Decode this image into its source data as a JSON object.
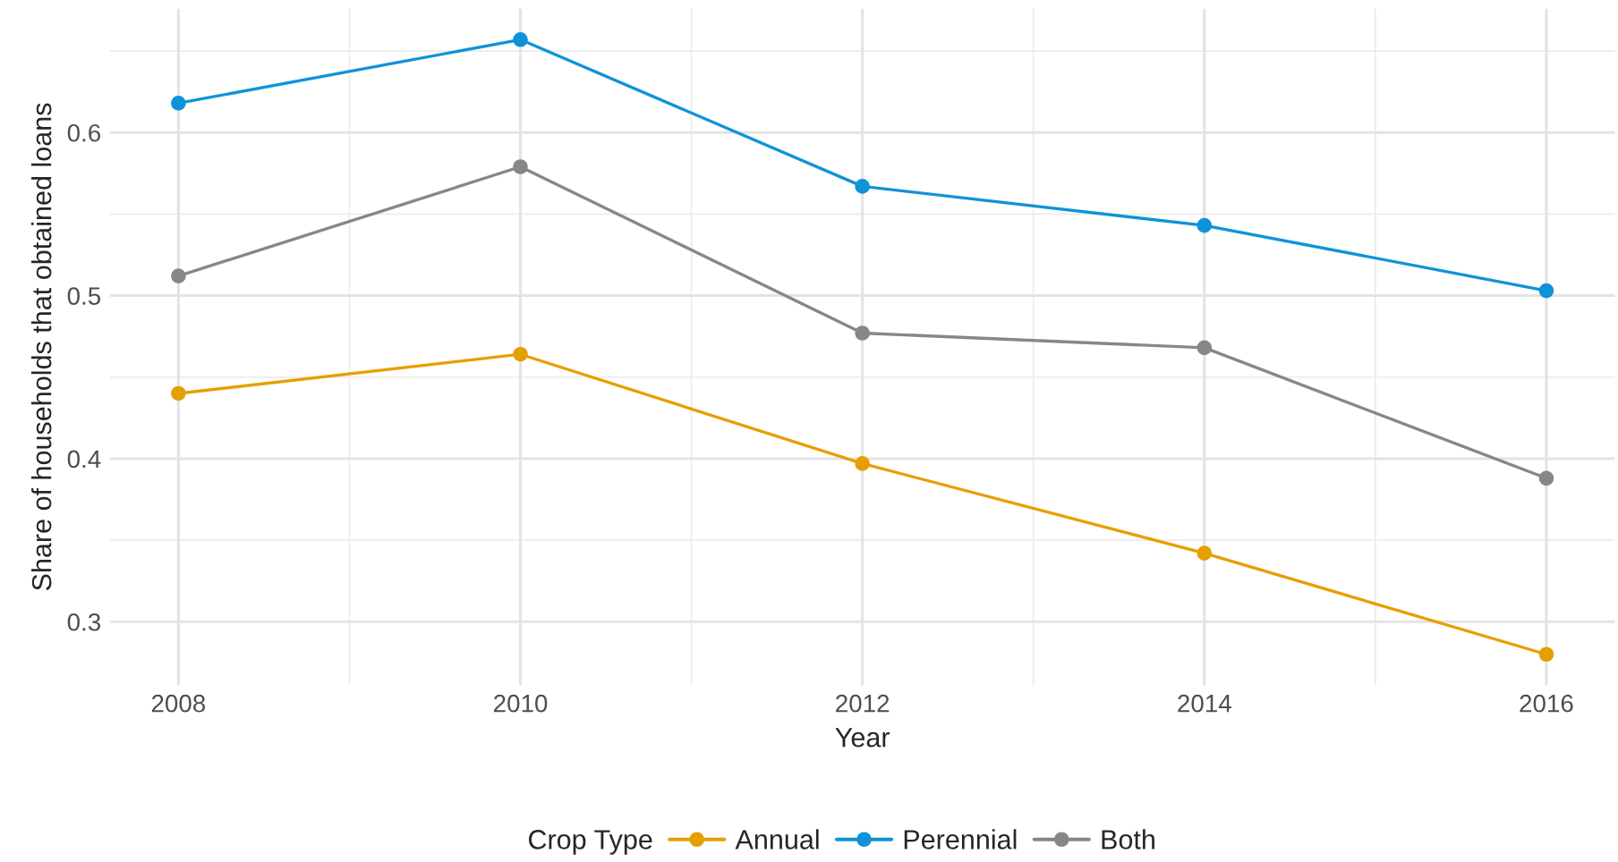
{
  "chart_data": {
    "type": "line",
    "xlabel": "Year",
    "ylabel": "Share of households that obtained loans",
    "legend_title": "Crop Type",
    "x": [
      2008,
      2010,
      2012,
      2014,
      2016
    ],
    "series": [
      {
        "name": "Annual",
        "color": "#e69f00",
        "values": [
          0.44,
          0.464,
          0.397,
          0.342,
          0.28
        ]
      },
      {
        "name": "Perennial",
        "color": "#0f93d8",
        "values": [
          0.618,
          0.657,
          0.567,
          0.543,
          0.503
        ]
      },
      {
        "name": "Both",
        "color": "#878787",
        "values": [
          0.512,
          0.579,
          0.477,
          0.468,
          0.388
        ]
      }
    ],
    "xlim": [
      2007.6,
      2016.4
    ],
    "xticks": [
      2008,
      2010,
      2012,
      2014,
      2016
    ],
    "ylim": [
      0.261,
      0.676
    ],
    "yticks": [
      0.3,
      0.4,
      0.5,
      0.6
    ],
    "grid": true,
    "legend": "bottom",
    "marker": "circle",
    "line_style": "solid"
  }
}
